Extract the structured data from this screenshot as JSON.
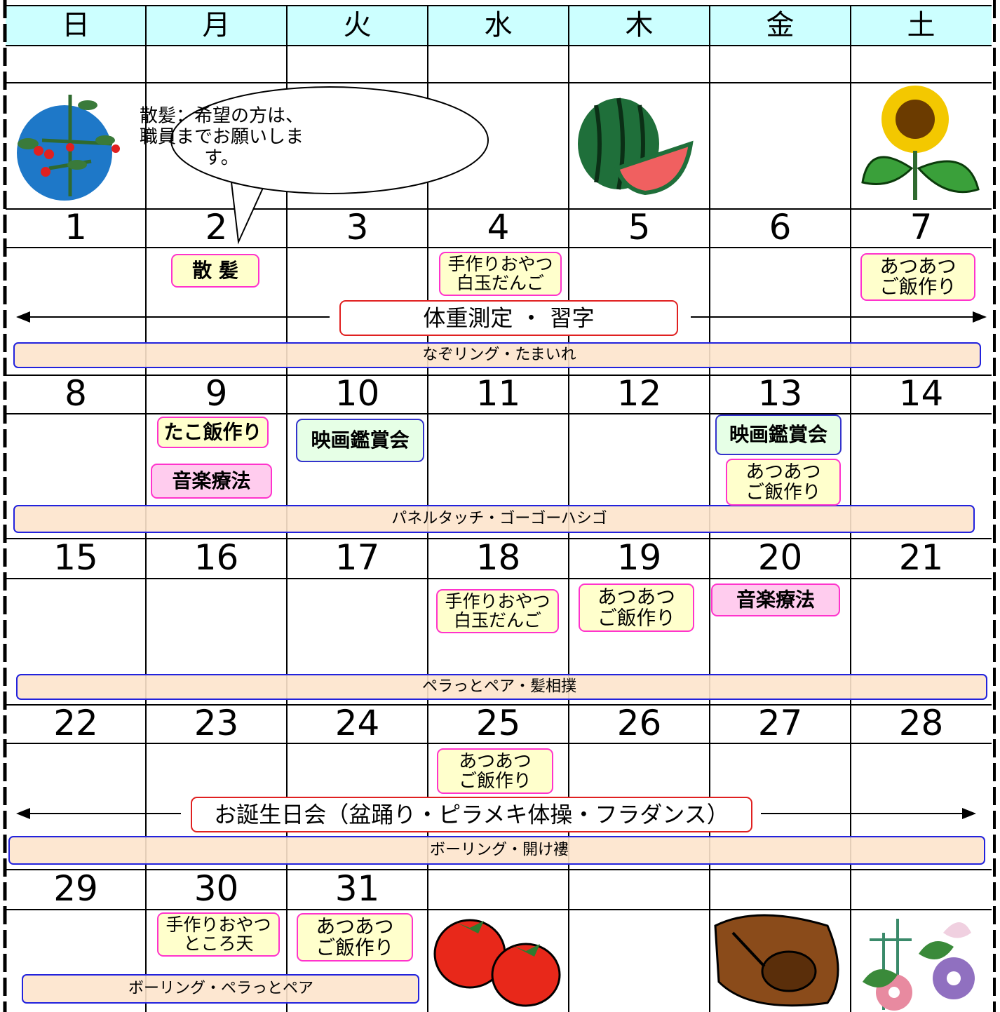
{
  "weekdays": [
    "日",
    "月",
    "火",
    "水",
    "木",
    "金",
    "土"
  ],
  "speech_bubble": {
    "lines": [
      "散髪：希望の方は、",
      "職員までお願いしま",
      "す。"
    ]
  },
  "weeks": [
    {
      "dates": [
        1,
        2,
        3,
        4,
        5,
        6,
        7
      ],
      "events": [
        {
          "lines": [
            "散 髪"
          ],
          "fill": "#ffffcc",
          "border": "#ff33cc"
        },
        {
          "lines": [
            "手作りおやつ",
            "白玉だんご"
          ],
          "fill": "#ffffcc",
          "border": "#ff33cc"
        },
        {
          "lines": [
            "あつあつ",
            "ご飯作り"
          ],
          "fill": "#ffffcc",
          "border": "#ff33cc"
        }
      ],
      "wide_event": "体重測定 ・ 習字",
      "banner": "なぞリング・たまいれ"
    },
    {
      "dates": [
        8,
        9,
        10,
        11,
        12,
        13,
        14
      ],
      "events": [
        {
          "lines": [
            "たこ飯作り"
          ],
          "fill": "#ffffcc",
          "border": "#ff33cc"
        },
        {
          "lines": [
            "音楽療法"
          ],
          "fill": "#ffccee",
          "border": "#ff33cc"
        },
        {
          "lines": [
            "映画鑑賞会"
          ],
          "fill": "#e6ffe6",
          "border": "#3333cc"
        },
        {
          "lines": [
            "映画鑑賞会"
          ],
          "fill": "#e6ffe6",
          "border": "#3333cc"
        },
        {
          "lines": [
            "あつあつ",
            "ご飯作り"
          ],
          "fill": "#ffffcc",
          "border": "#ff33cc"
        }
      ],
      "banner": "パネルタッチ・ゴーゴーハシゴ"
    },
    {
      "dates": [
        15,
        16,
        17,
        18,
        19,
        20,
        21
      ],
      "events": [
        {
          "lines": [
            "手作りおやつ",
            "白玉だんご"
          ],
          "fill": "#ffffcc",
          "border": "#ff33cc"
        },
        {
          "lines": [
            "あつあつ",
            "ご飯作り"
          ],
          "fill": "#ffffcc",
          "border": "#ff33cc"
        },
        {
          "lines": [
            "音楽療法"
          ],
          "fill": "#ffccee",
          "border": "#ff33cc"
        }
      ],
      "banner": "ペラっとペア・髪相撲"
    },
    {
      "dates": [
        22,
        23,
        24,
        25,
        26,
        27,
        28
      ],
      "events": [
        {
          "lines": [
            "あつあつ",
            "ご飯作り"
          ],
          "fill": "#ffffcc",
          "border": "#ff33cc"
        }
      ],
      "wide_event": "お誕生日会（盆踊り・ピラメキ体操・フラダンス）",
      "banner": "ボーリング・開け褸"
    },
    {
      "dates": [
        29,
        30,
        31
      ],
      "events": [
        {
          "lines": [
            "手作りおやつ",
            "ところ天"
          ],
          "fill": "#ffffcc",
          "border": "#ff33cc"
        },
        {
          "lines": [
            "あつあつ",
            "ご飯作り"
          ],
          "fill": "#ffffcc",
          "border": "#ff33cc"
        }
      ],
      "banner": "ボーリング・ペラっとペア"
    }
  ]
}
